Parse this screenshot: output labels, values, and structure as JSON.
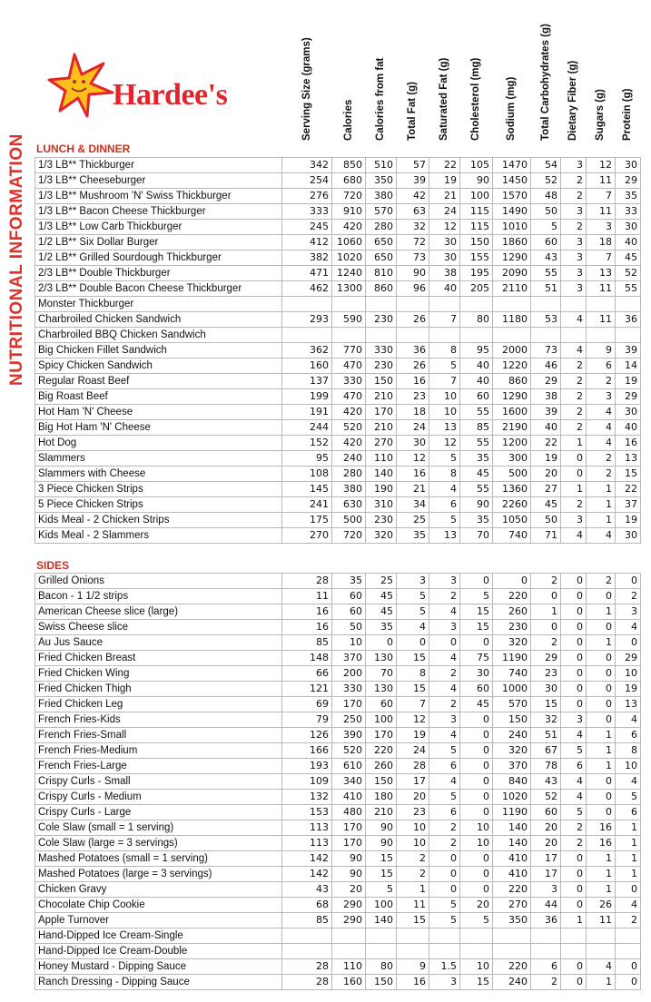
{
  "brand": {
    "name": "Hardee's"
  },
  "side_title": "NUTRITIONAL INFORMATION",
  "columns": [
    "Serving Size (grams)",
    "Calories",
    "Calories from fat",
    "Total Fat (g)",
    "Saturated Fat (g)",
    "Cholesterol (mg)",
    "Sodium (mg)",
    "Total Carbohydrates (g)",
    "Dietary Fiber (g)",
    "Sugars (g)",
    "Protein (g)"
  ],
  "sections": [
    {
      "title": "LUNCH & DINNER",
      "rows": [
        [
          "1/3 LB** Thickburger",
          "342",
          "850",
          "510",
          "57",
          "22",
          "105",
          "1470",
          "54",
          "3",
          "12",
          "30"
        ],
        [
          "1/3 LB** Cheeseburger",
          "254",
          "680",
          "350",
          "39",
          "19",
          "90",
          "1450",
          "52",
          "2",
          "11",
          "29"
        ],
        [
          "1/3 LB** Mushroom 'N' Swiss Thickburger",
          "276",
          "720",
          "380",
          "42",
          "21",
          "100",
          "1570",
          "48",
          "2",
          "7",
          "35"
        ],
        [
          "1/3 LB** Bacon Cheese Thickburger",
          "333",
          "910",
          "570",
          "63",
          "24",
          "115",
          "1490",
          "50",
          "3",
          "11",
          "33"
        ],
        [
          "1/3 LB** Low Carb Thickburger",
          "245",
          "420",
          "280",
          "32",
          "12",
          "115",
          "1010",
          "5",
          "2",
          "3",
          "30"
        ],
        [
          "1/2 LB** Six Dollar Burger",
          "412",
          "1060",
          "650",
          "72",
          "30",
          "150",
          "1860",
          "60",
          "3",
          "18",
          "40"
        ],
        [
          "1/2 LB** Grilled Sourdough Thickburger",
          "382",
          "1020",
          "650",
          "73",
          "30",
          "155",
          "1290",
          "43",
          "3",
          "7",
          "45"
        ],
        [
          "2/3 LB** Double Thickburger",
          "471",
          "1240",
          "810",
          "90",
          "38",
          "195",
          "2090",
          "55",
          "3",
          "13",
          "52"
        ],
        [
          "2/3 LB** Double Bacon Cheese Thickburger",
          "462",
          "1300",
          "860",
          "96",
          "40",
          "205",
          "2110",
          "51",
          "3",
          "11",
          "55"
        ],
        [
          "Monster Thickburger",
          "",
          "",
          "",
          "",
          "",
          "",
          "",
          "",
          "",
          "",
          ""
        ],
        [
          "Charbroiled Chicken Sandwich",
          "293",
          "590",
          "230",
          "26",
          "7",
          "80",
          "1180",
          "53",
          "4",
          "11",
          "36"
        ],
        [
          "Charbroiled BBQ Chicken Sandwich",
          "",
          "",
          "",
          "",
          "",
          "",
          "",
          "",
          "",
          "",
          ""
        ],
        [
          "Big Chicken Fillet Sandwich",
          "362",
          "770",
          "330",
          "36",
          "8",
          "95",
          "2000",
          "73",
          "4",
          "9",
          "39"
        ],
        [
          "Spicy Chicken Sandwich",
          "160",
          "470",
          "230",
          "26",
          "5",
          "40",
          "1220",
          "46",
          "2",
          "6",
          "14"
        ],
        [
          "Regular Roast Beef",
          "137",
          "330",
          "150",
          "16",
          "7",
          "40",
          "860",
          "29",
          "2",
          "2",
          "19"
        ],
        [
          "Big Roast Beef",
          "199",
          "470",
          "210",
          "23",
          "10",
          "60",
          "1290",
          "38",
          "2",
          "3",
          "29"
        ],
        [
          "Hot Ham 'N' Cheese",
          "191",
          "420",
          "170",
          "18",
          "10",
          "55",
          "1600",
          "39",
          "2",
          "4",
          "30"
        ],
        [
          "Big Hot Ham 'N' Cheese",
          "244",
          "520",
          "210",
          "24",
          "13",
          "85",
          "2190",
          "40",
          "2",
          "4",
          "40"
        ],
        [
          "Hot Dog",
          "152",
          "420",
          "270",
          "30",
          "12",
          "55",
          "1200",
          "22",
          "1",
          "4",
          "16"
        ],
        [
          "Slammers",
          "95",
          "240",
          "110",
          "12",
          "5",
          "35",
          "300",
          "19",
          "0",
          "2",
          "13"
        ],
        [
          "Slammers with Cheese",
          "108",
          "280",
          "140",
          "16",
          "8",
          "45",
          "500",
          "20",
          "0",
          "2",
          "15"
        ],
        [
          "3 Piece Chicken Strips",
          "145",
          "380",
          "190",
          "21",
          "4",
          "55",
          "1360",
          "27",
          "1",
          "1",
          "22"
        ],
        [
          "5 Piece Chicken Strips",
          "241",
          "630",
          "310",
          "34",
          "6",
          "90",
          "2260",
          "45",
          "2",
          "1",
          "37"
        ],
        [
          "Kids Meal - 2 Chicken Strips",
          "175",
          "500",
          "230",
          "25",
          "5",
          "35",
          "1050",
          "50",
          "3",
          "1",
          "19"
        ],
        [
          "Kids Meal - 2 Slammers",
          "270",
          "720",
          "320",
          "35",
          "13",
          "70",
          "740",
          "71",
          "4",
          "4",
          "30"
        ]
      ]
    },
    {
      "title": "SIDES",
      "rows": [
        [
          "Grilled Onions",
          "28",
          "35",
          "25",
          "3",
          "3",
          "0",
          "0",
          "2",
          "0",
          "2",
          "0"
        ],
        [
          "Bacon - 1 1/2 strips",
          "11",
          "60",
          "45",
          "5",
          "2",
          "5",
          "220",
          "0",
          "0",
          "0",
          "2"
        ],
        [
          "American Cheese slice (large)",
          "16",
          "60",
          "45",
          "5",
          "4",
          "15",
          "260",
          "1",
          "0",
          "1",
          "3"
        ],
        [
          "Swiss Cheese slice",
          "16",
          "50",
          "35",
          "4",
          "3",
          "15",
          "230",
          "0",
          "0",
          "0",
          "4"
        ],
        [
          "Au Jus Sauce",
          "85",
          "10",
          "0",
          "0",
          "0",
          "0",
          "320",
          "2",
          "0",
          "1",
          "0"
        ],
        [
          "Fried Chicken Breast",
          "148",
          "370",
          "130",
          "15",
          "4",
          "75",
          "1190",
          "29",
          "0",
          "0",
          "29"
        ],
        [
          "Fried Chicken Wing",
          "66",
          "200",
          "70",
          "8",
          "2",
          "30",
          "740",
          "23",
          "0",
          "0",
          "10"
        ],
        [
          "Fried Chicken Thigh",
          "121",
          "330",
          "130",
          "15",
          "4",
          "60",
          "1000",
          "30",
          "0",
          "0",
          "19"
        ],
        [
          "Fried Chicken Leg",
          "69",
          "170",
          "60",
          "7",
          "2",
          "45",
          "570",
          "15",
          "0",
          "0",
          "13"
        ],
        [
          "French Fries-Kids",
          "79",
          "250",
          "100",
          "12",
          "3",
          "0",
          "150",
          "32",
          "3",
          "0",
          "4"
        ],
        [
          "French Fries-Small",
          "126",
          "390",
          "170",
          "19",
          "4",
          "0",
          "240",
          "51",
          "4",
          "1",
          "6"
        ],
        [
          "French Fries-Medium",
          "166",
          "520",
          "220",
          "24",
          "5",
          "0",
          "320",
          "67",
          "5",
          "1",
          "8"
        ],
        [
          "French Fries-Large",
          "193",
          "610",
          "260",
          "28",
          "6",
          "0",
          "370",
          "78",
          "6",
          "1",
          "10"
        ],
        [
          "Crispy Curls - Small",
          "109",
          "340",
          "150",
          "17",
          "4",
          "0",
          "840",
          "43",
          "4",
          "0",
          "4"
        ],
        [
          "Crispy Curls - Medium",
          "132",
          "410",
          "180",
          "20",
          "5",
          "0",
          "1020",
          "52",
          "4",
          "0",
          "5"
        ],
        [
          "Crispy Curls - Large",
          "153",
          "480",
          "210",
          "23",
          "6",
          "0",
          "1190",
          "60",
          "5",
          "0",
          "6"
        ],
        [
          "Cole Slaw (small = 1 serving)",
          "113",
          "170",
          "90",
          "10",
          "2",
          "10",
          "140",
          "20",
          "2",
          "16",
          "1"
        ],
        [
          "Cole Slaw (large = 3 servings)",
          "113",
          "170",
          "90",
          "10",
          "2",
          "10",
          "140",
          "20",
          "2",
          "16",
          "1"
        ],
        [
          "Mashed Potatoes (small = 1 serving)",
          "142",
          "90",
          "15",
          "2",
          "0",
          "0",
          "410",
          "17",
          "0",
          "1",
          "1"
        ],
        [
          "Mashed Potatoes (large = 3 servings)",
          "142",
          "90",
          "15",
          "2",
          "0",
          "0",
          "410",
          "17",
          "0",
          "1",
          "1"
        ],
        [
          "Chicken Gravy",
          "43",
          "20",
          "5",
          "1",
          "0",
          "0",
          "220",
          "3",
          "0",
          "1",
          "0"
        ],
        [
          "Chocolate Chip Cookie",
          "68",
          "290",
          "100",
          "11",
          "5",
          "20",
          "270",
          "44",
          "0",
          "26",
          "4"
        ],
        [
          "Apple Turnover",
          "85",
          "290",
          "140",
          "15",
          "5",
          "5",
          "350",
          "36",
          "1",
          "11",
          "2"
        ],
        [
          "Hand-Dipped Ice Cream-Single",
          "",
          "",
          "",
          "",
          "",
          "",
          "",
          "",
          "",
          "",
          ""
        ],
        [
          "Hand-Dipped Ice Cream-Double",
          "",
          "",
          "",
          "",
          "",
          "",
          "",
          "",
          "",
          "",
          ""
        ],
        [
          "Honey Mustard - Dipping Sauce",
          "28",
          "110",
          "80",
          "9",
          "1.5",
          "10",
          "220",
          "6",
          "0",
          "4",
          "0"
        ],
        [
          "Ranch Dressing - Dipping Sauce",
          "28",
          "160",
          "150",
          "16",
          "3",
          "15",
          "240",
          "2",
          "0",
          "1",
          "0"
        ]
      ]
    }
  ],
  "colors": {
    "accent_red": "#e3242b",
    "star_yellow": "#fcc21b",
    "grid": "#b8b8b8"
  }
}
